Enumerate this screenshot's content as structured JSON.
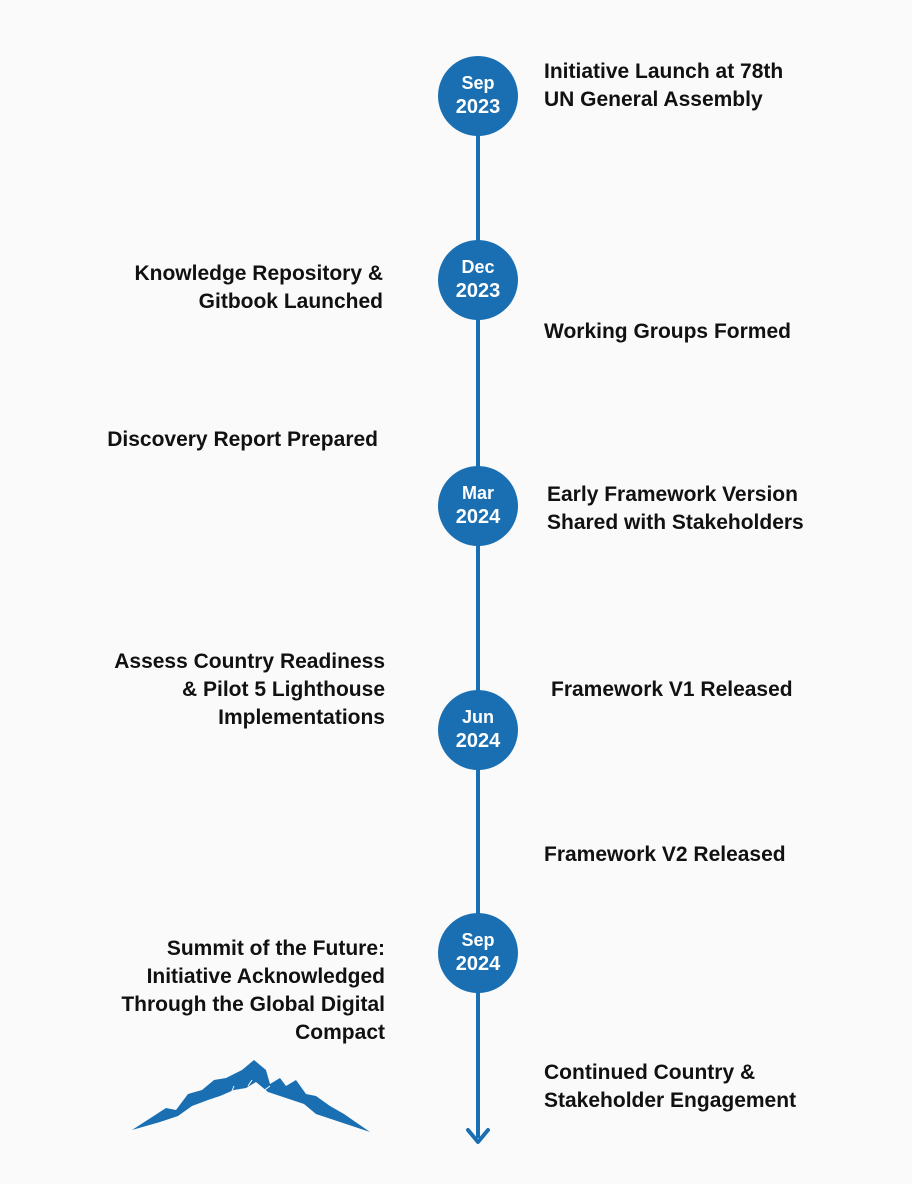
{
  "accent_color": "#1a6fb3",
  "milestones": [
    {
      "month": "Sep",
      "year": "2023"
    },
    {
      "month": "Dec",
      "year": "2023"
    },
    {
      "month": "Mar",
      "year": "2024"
    },
    {
      "month": "Jun",
      "year": "2024"
    },
    {
      "month": "Sep",
      "year": "2024"
    }
  ],
  "events": [
    {
      "side": "right",
      "lines": [
        "Initiative Launch at 78th",
        "UN General Assembly"
      ]
    },
    {
      "side": "left",
      "lines": [
        "Knowledge Repository &",
        "Gitbook Launched"
      ]
    },
    {
      "side": "right",
      "lines": [
        "Working Groups Formed"
      ]
    },
    {
      "side": "left",
      "lines": [
        "Discovery Report Prepared"
      ]
    },
    {
      "side": "right",
      "lines": [
        "Early Framework Version",
        "Shared with Stakeholders"
      ]
    },
    {
      "side": "left",
      "lines": [
        "Assess Country Readiness",
        "& Pilot 5 Lighthouse",
        "Implementations"
      ]
    },
    {
      "side": "right",
      "lines": [
        "Framework V1 Released"
      ]
    },
    {
      "side": "right",
      "lines": [
        "Framework V2 Released"
      ]
    },
    {
      "side": "left",
      "lines": [
        "Summit of the Future:",
        "Initiative Acknowledged",
        "Through the Global Digital",
        "Compact"
      ]
    },
    {
      "side": "right",
      "lines": [
        "Continued Country &",
        "Stakeholder Engagement"
      ]
    }
  ],
  "icons": {
    "end_arrow": "arrow-down-icon",
    "decoration": "mountain-icon"
  }
}
